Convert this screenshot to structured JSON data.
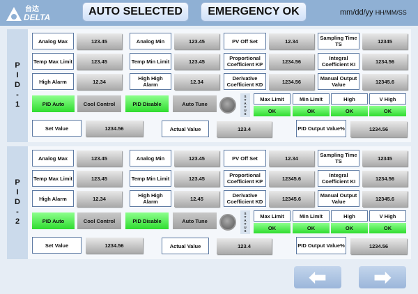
{
  "header": {
    "logo_text": "DELTA",
    "logo_cn": "台达",
    "auto_selected": "AUTO SELECTED",
    "emergency": "EMERGENCY OK",
    "date": "mm/dd/yy",
    "time": "HH/MM/SS"
  },
  "labels": {
    "analog_max": "Analog Max",
    "analog_min": "Analog Min",
    "pv_offset": "PV Off Set",
    "sampling_time": "Sampling Time TS",
    "temp_max": "Temp Max Limit",
    "temp_min": "Temp Min Limit",
    "kp": "Proportional Coefficient KP",
    "ki": "Integral Coefficient KI",
    "high_alarm": "High Alarm",
    "high_high_alarm": "High High Alarm",
    "kd": "Derivative Coefficient KD",
    "manual_output": "Manual Output Value",
    "pid_auto": "PID Auto",
    "cool_control": "Cool Control",
    "pid_disable": "PID Disable",
    "auto_tune": "Auto Tune",
    "status": "STATUS",
    "max_limit": "Max Limit",
    "min_limit": "Min Limit",
    "high": "High",
    "v_high": "V High",
    "set_value": "Set Value",
    "actual_value": "Actual Value",
    "pid_output": "PID Output Value%"
  },
  "panels": [
    {
      "title": "PID-1",
      "analog_max": "123.45",
      "analog_min": "123.45",
      "pv_offset": "12.34",
      "sampling_time": "12345",
      "temp_max": "123.45",
      "temp_min": "123.45",
      "kp": "1234.56",
      "ki": "1234.56",
      "high_alarm": "12.34",
      "high_high_alarm": "12.34",
      "kd": "1234.56",
      "manual_output": "12345.6",
      "max_limit": "OK",
      "min_limit": "OK",
      "high": "OK",
      "v_high": "OK",
      "set_value": "1234.56",
      "actual_value": "123.4",
      "pid_output": "1234.56"
    },
    {
      "title": "PID-2",
      "analog_max": "123.45",
      "analog_min": "123.45",
      "pv_offset": "12.34",
      "sampling_time": "12345",
      "temp_max": "123.45",
      "temp_min": "123.45",
      "kp": "12345.6",
      "ki": "1234.56",
      "high_alarm": "12.34",
      "high_high_alarm": "12.45",
      "kd": "12345.6",
      "manual_output": "12345.6",
      "max_limit": "OK",
      "min_limit": "OK",
      "high": "OK",
      "v_high": "OK",
      "set_value": "1234.56",
      "actual_value": "123.4",
      "pid_output": "1234.56"
    }
  ],
  "nav": {
    "prev": "⬅",
    "next": "➡"
  },
  "colors": {
    "header": "#8fb0d4",
    "ok_green": "#3fe03f"
  }
}
